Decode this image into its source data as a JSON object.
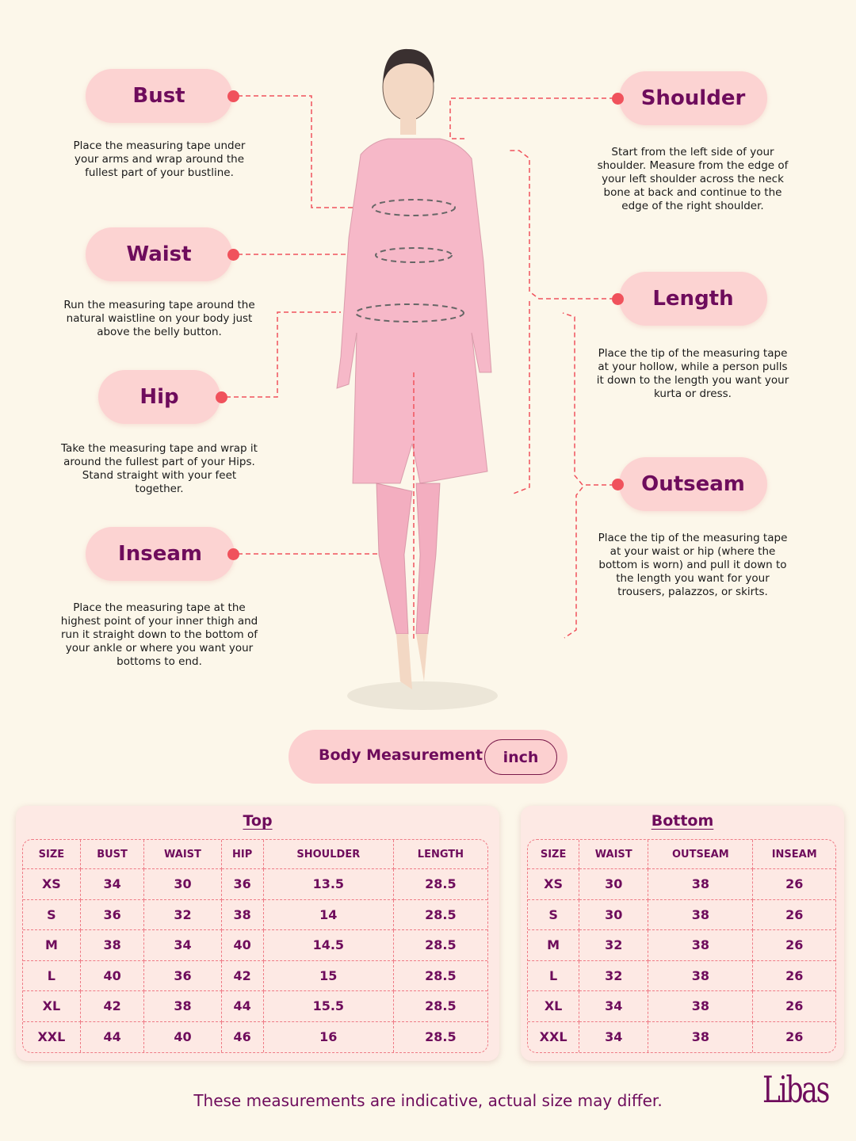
{
  "measurements": {
    "bust": {
      "label": "Bust",
      "desc": "Place the measuring tape under your arms and wrap around the fullest part of your bustline."
    },
    "waist": {
      "label": "Waist",
      "desc": "Run the measuring tape around the natural waistline on your body just above the belly button."
    },
    "hip": {
      "label": "Hip",
      "desc": "Take the measuring tape and wrap it around the fullest part of your Hips. Stand straight with your feet together."
    },
    "inseam": {
      "label": "Inseam",
      "desc": "Place the measuring tape at the highest point of your inner thigh and run it straight down to the bottom of your ankle or where you want your bottoms to end."
    },
    "shoulder": {
      "label": "Shoulder",
      "desc": "Start from the left side of your shoulder. Measure from the edge of your left shoulder across the neck bone at back and continue to the edge of the right shoulder."
    },
    "length": {
      "label": "Length",
      "desc": "Place the tip of the measuring tape at your hollow, while a person pulls it down to the length you want your kurta or dress."
    },
    "outseam": {
      "label": "Outseam",
      "desc": "Place the tip of the measuring tape at your waist or hip (where the bottom is worn) and pull it down to the length you want for your trousers, palazzos, or skirts."
    }
  },
  "unit_bar": {
    "label": "Body Measurement",
    "unit": "inch"
  },
  "top_table": {
    "title": "Top",
    "headers": [
      "SIZE",
      "BUST",
      "WAIST",
      "HIP",
      "SHOULDER",
      "LENGTH"
    ],
    "rows": [
      [
        "XS",
        "34",
        "30",
        "36",
        "13.5",
        "28.5"
      ],
      [
        "S",
        "36",
        "32",
        "38",
        "14",
        "28.5"
      ],
      [
        "M",
        "38",
        "34",
        "40",
        "14.5",
        "28.5"
      ],
      [
        "L",
        "40",
        "36",
        "42",
        "15",
        "28.5"
      ],
      [
        "XL",
        "42",
        "38",
        "44",
        "15.5",
        "28.5"
      ],
      [
        "XXL",
        "44",
        "40",
        "46",
        "16",
        "28.5"
      ]
    ]
  },
  "bottom_table": {
    "title": "Bottom",
    "headers": [
      "SIZE",
      "WAIST",
      "OUTSEAM",
      "INSEAM"
    ],
    "rows": [
      [
        "XS",
        "30",
        "38",
        "26"
      ],
      [
        "S",
        "30",
        "38",
        "26"
      ],
      [
        "M",
        "32",
        "38",
        "26"
      ],
      [
        "L",
        "32",
        "38",
        "26"
      ],
      [
        "XL",
        "34",
        "38",
        "26"
      ],
      [
        "XXL",
        "34",
        "38",
        "26"
      ]
    ]
  },
  "footer": {
    "note": "These measurements are indicative, actual size may differ.",
    "logo": "Libas"
  },
  "colors": {
    "accent": "#6e0c5c",
    "pill": "#fcd3d2",
    "dashed": "#f0525c",
    "background": "#fcf7ea"
  }
}
